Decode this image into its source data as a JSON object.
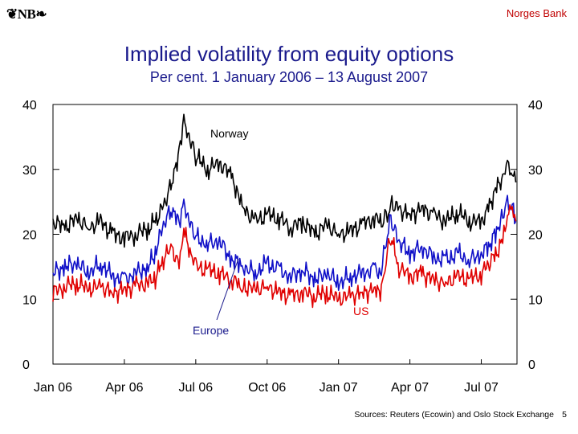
{
  "header": {
    "logo_text": "❦NB❧",
    "bank_name": "Norges Bank"
  },
  "footer": {
    "sources": "Sources: Reuters (Ecowin) and Oslo Stock Exchange",
    "page_number": "5"
  },
  "colors": {
    "title": "#1a1a8c",
    "norway": "#000000",
    "europe": "#1010c8",
    "us": "#e00000"
  },
  "chart_data": {
    "type": "line",
    "title": "Implied volatility from equity options",
    "subtitle": "Per cent. 1 January 2006 – 13 August 2007",
    "xlabel": "",
    "ylabel": "",
    "ylim": [
      0,
      40
    ],
    "xlim": [
      0,
      19.5
    ],
    "y_ticks": [
      0,
      10,
      20,
      30,
      40
    ],
    "y_tick_labels": [
      "0",
      "10",
      "20",
      "30",
      "40"
    ],
    "x_ticks": [
      0,
      3,
      6,
      9,
      12,
      15,
      18
    ],
    "x_tick_labels": [
      "Jan 06",
      "Apr 06",
      "Jul 06",
      "Oct 06",
      "Jan 07",
      "Apr 07",
      "Jul 07"
    ],
    "x_unit": "months since 1 January 2006",
    "annotations": [
      {
        "text": "Norway",
        "series": "Norway"
      },
      {
        "text": "Europe",
        "series": "Europe"
      },
      {
        "text": "US",
        "series": "US"
      }
    ],
    "series": [
      {
        "name": "Norway",
        "x": [
          0,
          0.5,
          1,
          1.5,
          2,
          2.5,
          3,
          3.5,
          4,
          4.3,
          4.6,
          5,
          5.3,
          5.5,
          5.8,
          6,
          6.5,
          7,
          7.5,
          7.8,
          8,
          8.5,
          9,
          9.5,
          10,
          10.5,
          11,
          11.5,
          12,
          12.5,
          13,
          13.5,
          13.8,
          14,
          14.2,
          14.5,
          15,
          15.5,
          16,
          16.5,
          17,
          17.5,
          18,
          18.3,
          18.6,
          18.9,
          19.1,
          19.3,
          19.45
        ],
        "values": [
          22,
          21,
          22.5,
          21,
          22,
          20,
          19.5,
          20,
          21,
          22,
          24,
          28,
          33,
          37,
          34,
          32,
          30,
          31,
          29,
          26,
          24,
          22,
          23,
          22.5,
          21,
          22,
          20,
          21.5,
          20,
          20.5,
          21.5,
          22.5,
          22,
          22.5,
          25,
          24,
          23,
          24,
          23,
          22,
          23.5,
          22,
          22,
          24,
          27,
          29,
          30.5,
          29,
          28
        ]
      },
      {
        "name": "Europe",
        "x": [
          0,
          0.5,
          1,
          1.5,
          2,
          2.5,
          3,
          3.5,
          4,
          4.3,
          4.6,
          5,
          5.3,
          5.5,
          5.8,
          6,
          6.5,
          7,
          7.5,
          7.8,
          8,
          8.5,
          9,
          9.5,
          10,
          10.5,
          11,
          11.5,
          12,
          12.5,
          13,
          13.5,
          13.8,
          14,
          14.2,
          14.5,
          15,
          15.5,
          16,
          16.5,
          17,
          17.5,
          18,
          18.3,
          18.6,
          18.9,
          19.1,
          19.3,
          19.45
        ],
        "values": [
          14,
          15,
          15.5,
          14,
          15.5,
          13.5,
          13,
          14,
          15,
          17,
          21,
          24,
          22,
          25,
          21,
          19.5,
          18.5,
          19,
          16,
          15.5,
          15,
          14,
          15.5,
          14.5,
          13.5,
          14.5,
          13,
          14,
          12.5,
          13.5,
          14,
          14.5,
          14,
          19,
          22,
          19,
          17,
          18,
          16.5,
          16,
          17,
          16,
          17,
          18,
          20,
          23,
          25,
          24,
          22
        ]
      },
      {
        "name": "US",
        "x": [
          0,
          0.5,
          1,
          1.5,
          2,
          2.5,
          3,
          3.5,
          4,
          4.3,
          4.6,
          5,
          5.3,
          5.5,
          5.8,
          6,
          6.5,
          7,
          7.5,
          7.8,
          8,
          8.5,
          9,
          9.5,
          10,
          10.5,
          11,
          11.5,
          12,
          12.5,
          13,
          13.5,
          13.8,
          14,
          14.2,
          14.5,
          15,
          15.5,
          16,
          16.5,
          17,
          17.5,
          18,
          18.3,
          18.6,
          18.9,
          19.1,
          19.3,
          19.45
        ],
        "values": [
          11,
          12,
          12.5,
          11.5,
          12,
          11,
          11.5,
          12,
          12.5,
          13,
          16,
          18,
          15,
          21,
          17,
          15,
          14.5,
          14,
          13,
          12.5,
          12,
          11.5,
          12,
          11,
          10.5,
          11,
          10.5,
          11,
          10,
          10.5,
          11,
          11.5,
          11,
          16,
          20,
          15,
          13.5,
          14,
          13,
          12.5,
          13.5,
          13,
          14,
          15.5,
          17,
          19,
          23,
          24,
          22
        ]
      }
    ]
  }
}
